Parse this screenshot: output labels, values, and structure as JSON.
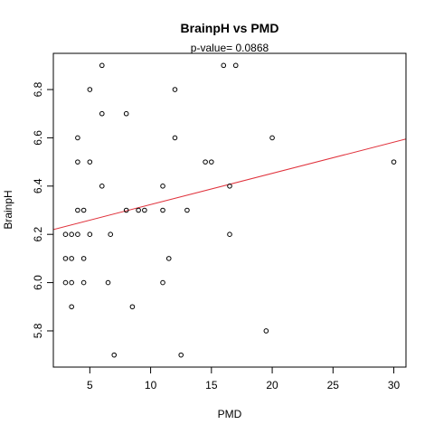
{
  "chart_data": {
    "type": "scatter",
    "title": "BrainpH  vs  PMD",
    "subtitle": "p-value= 0.0868",
    "xlabel": "PMD",
    "ylabel": "BrainpH",
    "xlim": [
      2.0,
      31.0
    ],
    "ylim": [
      5.65,
      6.95
    ],
    "xticks": [
      5,
      10,
      15,
      20,
      25,
      30
    ],
    "yticks": [
      5.8,
      6.0,
      6.2,
      6.4,
      6.6,
      6.8
    ],
    "points": [
      {
        "x": 3.0,
        "y": 6.2
      },
      {
        "x": 3.0,
        "y": 6.1
      },
      {
        "x": 3.0,
        "y": 6.0
      },
      {
        "x": 3.5,
        "y": 6.2
      },
      {
        "x": 3.5,
        "y": 6.1
      },
      {
        "x": 3.5,
        "y": 6.0
      },
      {
        "x": 3.5,
        "y": 5.9
      },
      {
        "x": 4.0,
        "y": 6.6
      },
      {
        "x": 4.0,
        "y": 6.5
      },
      {
        "x": 4.0,
        "y": 6.3
      },
      {
        "x": 4.0,
        "y": 6.2
      },
      {
        "x": 4.5,
        "y": 6.3
      },
      {
        "x": 4.5,
        "y": 6.1
      },
      {
        "x": 4.5,
        "y": 6.0
      },
      {
        "x": 5.0,
        "y": 6.8
      },
      {
        "x": 5.0,
        "y": 6.5
      },
      {
        "x": 5.0,
        "y": 6.2
      },
      {
        "x": 6.0,
        "y": 6.9
      },
      {
        "x": 6.0,
        "y": 6.7
      },
      {
        "x": 6.0,
        "y": 6.4
      },
      {
        "x": 6.5,
        "y": 6.0
      },
      {
        "x": 6.7,
        "y": 6.2
      },
      {
        "x": 7.0,
        "y": 5.7
      },
      {
        "x": 8.0,
        "y": 6.7
      },
      {
        "x": 8.0,
        "y": 6.3
      },
      {
        "x": 8.5,
        "y": 5.9
      },
      {
        "x": 9.0,
        "y": 6.3
      },
      {
        "x": 9.5,
        "y": 6.3
      },
      {
        "x": 11.0,
        "y": 6.4
      },
      {
        "x": 11.0,
        "y": 6.3
      },
      {
        "x": 11.0,
        "y": 6.0
      },
      {
        "x": 11.5,
        "y": 6.1
      },
      {
        "x": 12.0,
        "y": 6.8
      },
      {
        "x": 12.0,
        "y": 6.6
      },
      {
        "x": 12.5,
        "y": 5.7
      },
      {
        "x": 13.0,
        "y": 6.3
      },
      {
        "x": 14.5,
        "y": 6.5
      },
      {
        "x": 15.0,
        "y": 6.5
      },
      {
        "x": 16.0,
        "y": 6.9
      },
      {
        "x": 17.0,
        "y": 6.9
      },
      {
        "x": 16.5,
        "y": 6.4
      },
      {
        "x": 16.5,
        "y": 6.2
      },
      {
        "x": 19.5,
        "y": 5.8
      },
      {
        "x": 20.0,
        "y": 6.6
      },
      {
        "x": 30.0,
        "y": 6.5
      }
    ],
    "fit_line": {
      "x": [
        2.0,
        31.0
      ],
      "y": [
        6.22,
        6.595
      ],
      "color": "#e0323c"
    },
    "point_color": "#000000",
    "grid": false,
    "legend": false
  }
}
